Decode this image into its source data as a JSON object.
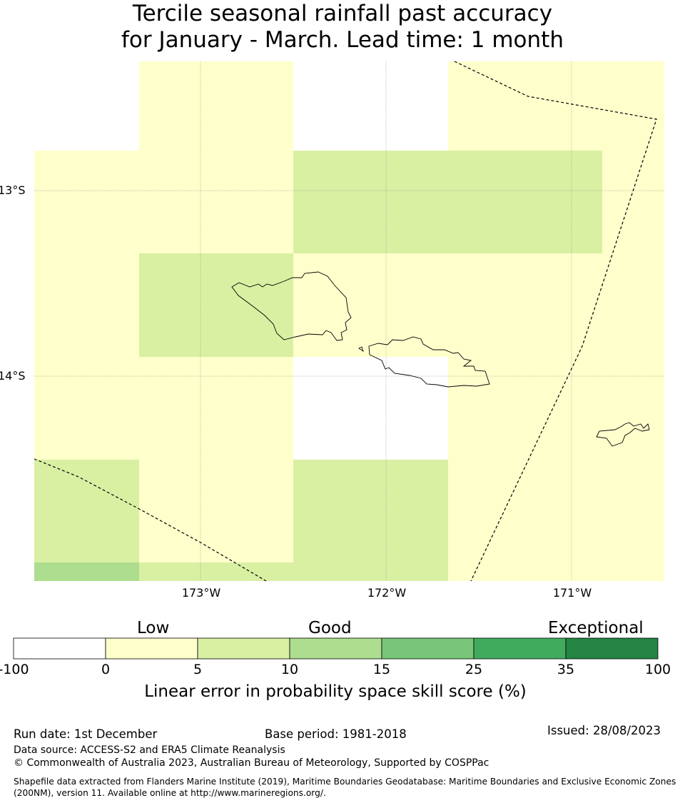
{
  "title": {
    "line1": "Tercile seasonal rainfall past accuracy",
    "line2": "for January - March. Lead time: 1 month"
  },
  "map": {
    "lat_labels": [
      "13°S",
      "14°S"
    ],
    "lon_labels": [
      "173°W",
      "172°W",
      "171°W"
    ],
    "colors": {
      "none": "#ffffff",
      "c0_5": "#ffffcc",
      "c5_10": "#d9f0a3",
      "c10_15": "#addd8e",
      "c15_25": "#78c679",
      "c25_35": "#41ab5d",
      "c35_100": "#238443"
    }
  },
  "colorbar": {
    "categories": [
      "Low",
      "Good",
      "Exceptional"
    ],
    "ticks": [
      "-100",
      "0",
      "5",
      "10",
      "15",
      "25",
      "35",
      "100"
    ],
    "colors": [
      "#ffffff",
      "#ffffcc",
      "#d9f0a3",
      "#addd8e",
      "#78c679",
      "#41ab5d",
      "#238443"
    ],
    "label": "Linear error in probability space skill score (%)"
  },
  "footer": {
    "run_date": "Run date: 1st December",
    "base_period": "Base period: 1981-2018",
    "issued": "Issued: 28/08/2023",
    "data_source": "Data source: ACCESS-S2 and ERA5 Climate Reanalysis",
    "copyright": "© Commonwealth of Australia 2023, Australian Bureau of Meteorology, Supported by COSPPac",
    "shapefile_line1": "Shapefile data extracted from Flanders Marine Institute (2019), Maritime Boundaries Geodatabase: Maritime Boundaries and Exclusive Economic Zones",
    "shapefile_line2": "(200NM), version 11. Available online at http://www.marineregions.org/."
  }
}
